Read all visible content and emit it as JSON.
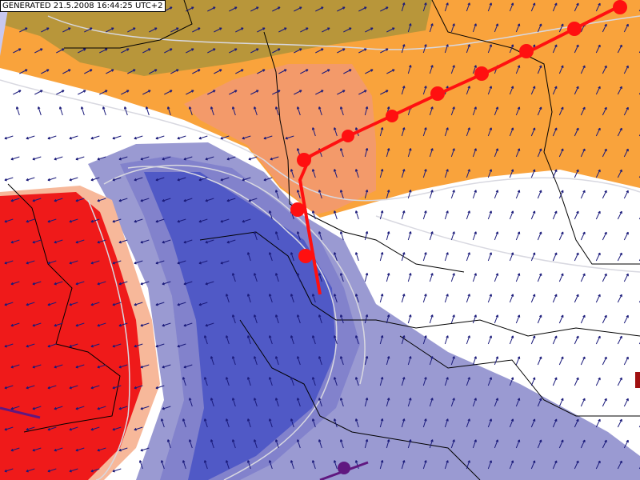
{
  "header": {
    "generated": "GENERATED 21.5.2008 16:44:25 UTC+2"
  }
}
